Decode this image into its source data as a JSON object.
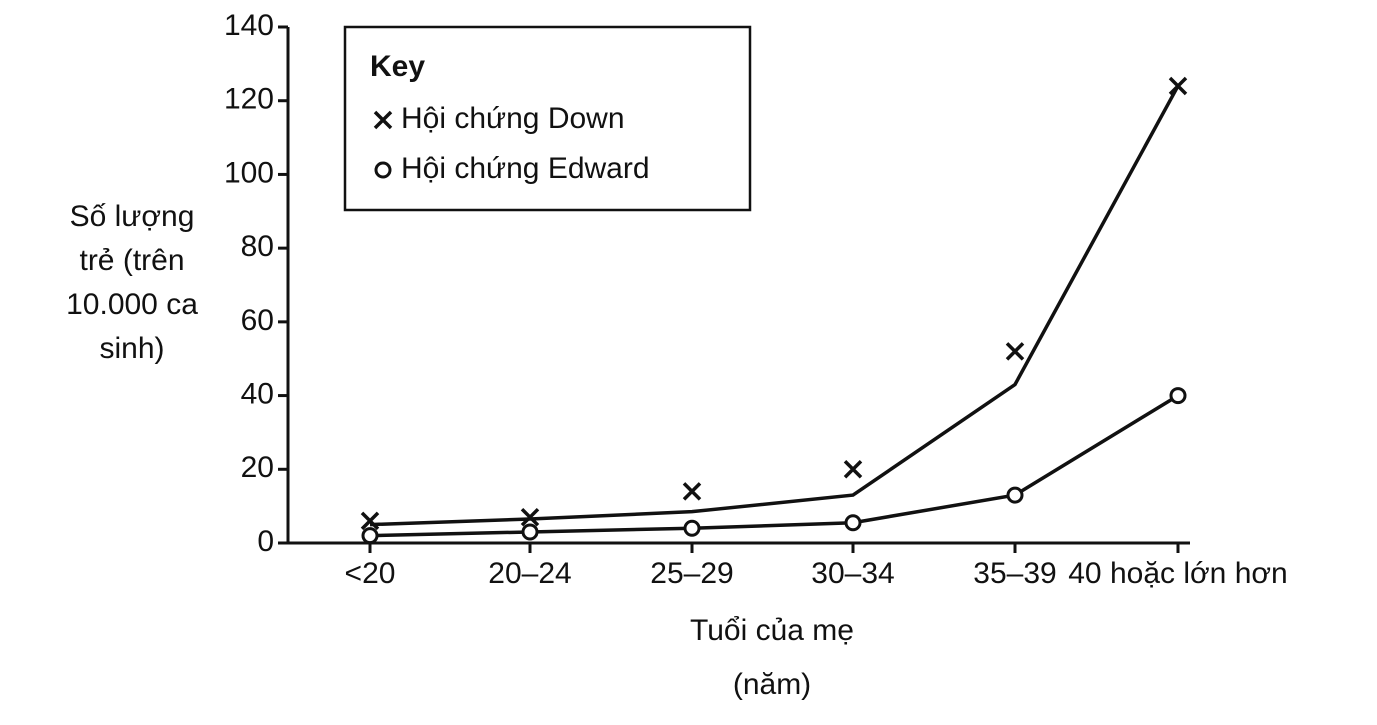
{
  "chart_data": {
    "type": "line",
    "y_label": [
      "Số lượng",
      "trẻ (trên",
      "10.000 ca",
      "sinh)"
    ],
    "x_label": [
      "Tuổi của mẹ",
      "(năm)"
    ],
    "legend_title": "Key",
    "categories": [
      "<20",
      "20–24",
      "25–29",
      "30–34",
      "35–39",
      "40 hoặc lớn hơn"
    ],
    "series": [
      {
        "name": "Hội chứng Down",
        "color": "#111111",
        "marker": "x",
        "values": [
          6,
          7,
          14,
          20,
          52,
          124
        ],
        "fit_values": [
          5,
          6.5,
          8.5,
          13,
          43,
          124
        ]
      },
      {
        "name": "Hội chứng Edward",
        "color": "#111111",
        "marker": "o",
        "values": [
          2,
          3,
          4,
          5.5,
          13,
          40
        ],
        "fit_values": [
          2,
          3,
          4,
          5.5,
          13,
          40
        ]
      }
    ],
    "ylim": [
      0,
      140
    ],
    "yticks": [
      0,
      20,
      40,
      60,
      80,
      100,
      120,
      140
    ],
    "grid": false
  }
}
